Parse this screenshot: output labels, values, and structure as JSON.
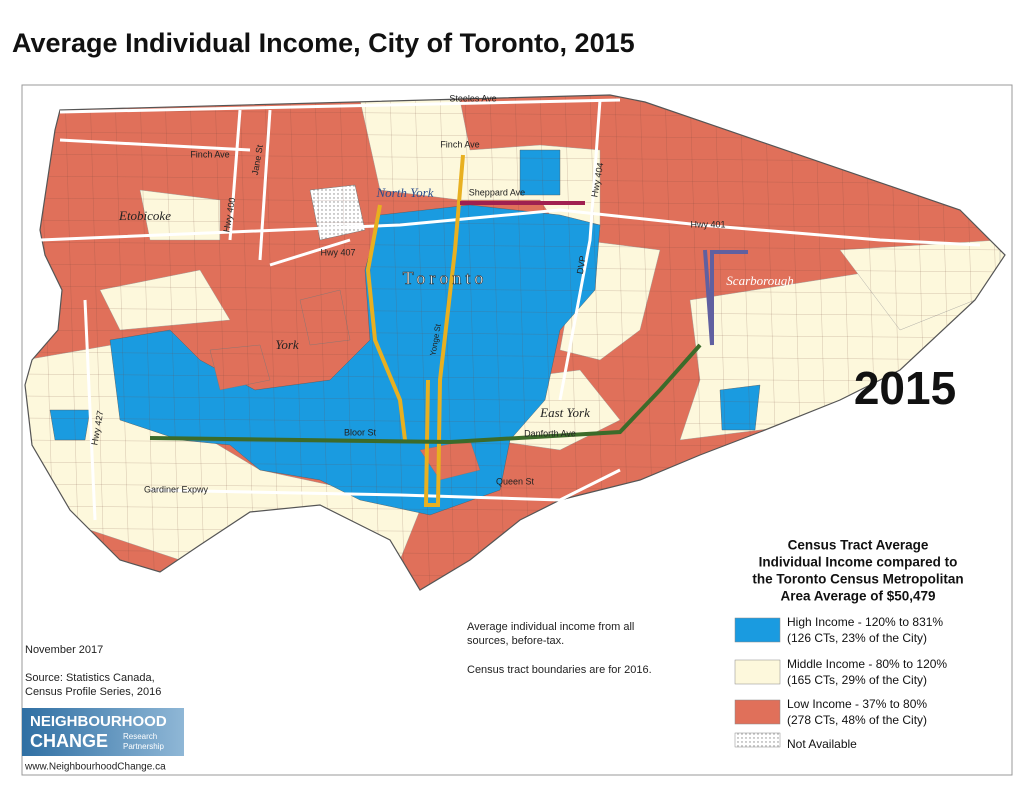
{
  "header": {
    "title": "Average Individual Income, City of Toronto, 2015"
  },
  "map": {
    "year_label": "2015",
    "labels": [
      {
        "text": "Steeles Ave"
      },
      {
        "text": "Finch Ave"
      },
      {
        "text": "Jane St"
      },
      {
        "text": "Hwy 400"
      },
      {
        "text": "Hwy 407"
      },
      {
        "text": "Finch Ave"
      },
      {
        "text": "Hwy 404"
      },
      {
        "text": "Sheppard Ave"
      },
      {
        "text": "Hwy 401"
      },
      {
        "text": "North York"
      },
      {
        "text": "Etobicoke"
      },
      {
        "text": "Toronto"
      },
      {
        "text": "DVP"
      },
      {
        "text": "Yonge St"
      },
      {
        "text": "Scarborough"
      },
      {
        "text": "York"
      },
      {
        "text": "East York"
      },
      {
        "text": "Hwy 427"
      },
      {
        "text": "Bloor St"
      },
      {
        "text": "Danforth Ave"
      },
      {
        "text": "Gardiner Expwy"
      },
      {
        "text": "Queen St"
      }
    ]
  },
  "legend": {
    "title": [
      "Census Tract Average",
      "Individual Income compared to",
      "the Toronto Census Metropolitan",
      "Area Average of $50,479"
    ],
    "items": [
      {
        "label": "High Income - 120% to 831%",
        "detail": "(126 CTs, 23% of the City)",
        "color": "#1a9be0"
      },
      {
        "label": "Middle Income - 80% to 120%",
        "detail": "(165 CTs, 29% of the City)",
        "color": "#fdf8dc"
      },
      {
        "label": "Low Income - 37% to 80%",
        "detail": "(278 CTs, 48% of the City)",
        "color": "#e0705a"
      },
      {
        "label": "Not Available",
        "color": "#ffffff"
      }
    ]
  },
  "notes": [
    "Average individual income from all",
    "sources, before-tax.",
    "Census tract boundaries are for 2016."
  ],
  "footer": {
    "date": "November 2017",
    "source": [
      "Source: Statistics Canada,",
      "Census Profile Series, 2016"
    ],
    "logo": [
      "NEIGHBOURHOOD",
      "CHANGE",
      "Research",
      "Partnership"
    ],
    "url": "www.NeighbourhoodChange.ca"
  }
}
